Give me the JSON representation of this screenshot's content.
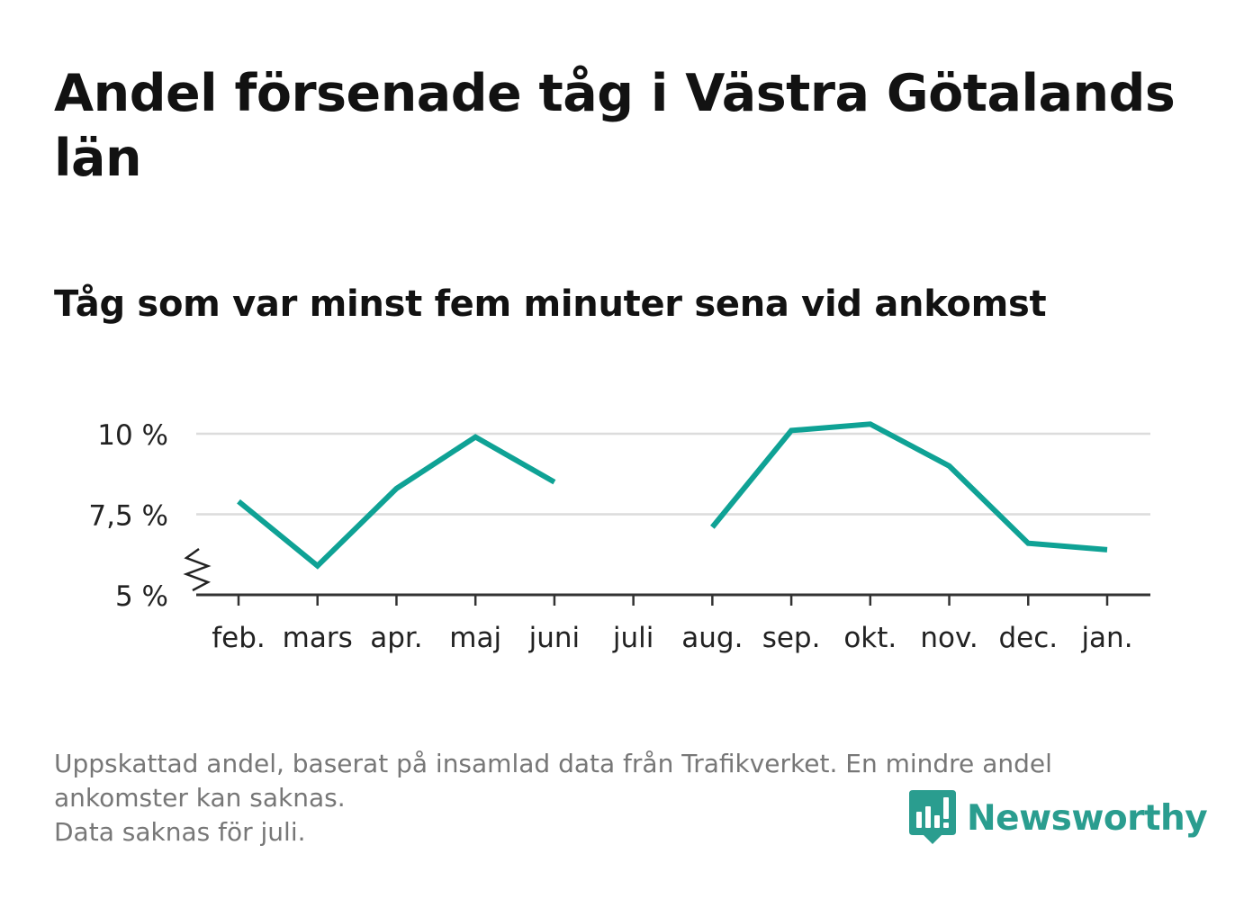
{
  "title": "Andel försenade tåg i Västra Götalands län",
  "subtitle": "Tåg som var minst fem minuter sena vid ankomst",
  "chart_data": {
    "type": "line",
    "categories": [
      "feb.",
      "mars",
      "apr.",
      "maj",
      "juni",
      "juli",
      "aug.",
      "sep.",
      "okt.",
      "nov.",
      "dec.",
      "jan."
    ],
    "series": [
      {
        "values": [
          7.9,
          5.9,
          8.3,
          9.9,
          8.5,
          null,
          7.1,
          10.1,
          10.3,
          9.0,
          6.6,
          6.4
        ]
      }
    ],
    "ylim": [
      5,
      10.5
    ],
    "yticks": [
      5,
      7.5,
      10
    ],
    "ytick_labels": [
      "5 %",
      "7,5 %",
      "10 %"
    ],
    "xlabel": "",
    "ylabel": "",
    "grid": true,
    "axis_break": true,
    "line_color": "#0fa295"
  },
  "footnote": {
    "lines": [
      "Uppskattad andel, baserat på insamlad data från Trafikverket. En mindre andel",
      "ankomster kan saknas.",
      "Data saknas för juli."
    ]
  },
  "logo": {
    "name": "Newsworthy",
    "icon": "bar-chart-speech-bubble-icon",
    "color": "#2a9d8f"
  }
}
